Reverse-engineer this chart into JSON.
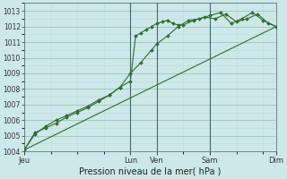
{
  "background_color": "#cce8e8",
  "plot_bg_color": "#cce8e8",
  "grid_color_major": "#99bbbb",
  "grid_color_minor": "#bbdddd",
  "line_color": "#2d6e2d",
  "title": "Pression niveau de la mer( hPa )",
  "ylim": [
    1004,
    1013.5
  ],
  "yticks": [
    1004,
    1005,
    1006,
    1007,
    1008,
    1009,
    1010,
    1011,
    1012,
    1013
  ],
  "ylabel_fontsize": 5.5,
  "day_labels": [
    "Jeu",
    "Lun",
    "Ven",
    "Sam",
    "Dim"
  ],
  "day_positions": [
    0.0,
    4.0,
    5.0,
    7.0,
    9.5
  ],
  "xlim": [
    0,
    9.5
  ],
  "series1_x": [
    0.0,
    0.4,
    0.8,
    1.2,
    1.6,
    2.0,
    2.4,
    2.8,
    3.2,
    3.6,
    4.0,
    4.2,
    4.4,
    4.6,
    4.8,
    5.0,
    5.2,
    5.4,
    5.6,
    5.8,
    6.0,
    6.4,
    6.8,
    7.2,
    7.6,
    8.0,
    8.4,
    8.8,
    9.2,
    9.5
  ],
  "series1_y": [
    1004.1,
    1005.2,
    1005.5,
    1005.8,
    1006.2,
    1006.5,
    1006.8,
    1007.2,
    1007.6,
    1008.1,
    1008.5,
    1011.4,
    1011.6,
    1011.8,
    1012.0,
    1012.2,
    1012.3,
    1012.4,
    1012.2,
    1012.1,
    1012.1,
    1012.4,
    1012.6,
    1012.5,
    1012.8,
    1012.3,
    1012.5,
    1012.8,
    1012.2,
    1012.0
  ],
  "series2_x": [
    0.0,
    0.4,
    0.8,
    1.2,
    1.6,
    2.0,
    2.4,
    2.8,
    3.2,
    3.6,
    4.0,
    4.4,
    4.8,
    5.0,
    5.4,
    5.8,
    6.2,
    6.6,
    7.0,
    7.4,
    7.8,
    8.2,
    8.6,
    9.0,
    9.5
  ],
  "series2_y": [
    1004.1,
    1005.1,
    1005.6,
    1006.0,
    1006.3,
    1006.6,
    1006.9,
    1007.3,
    1007.6,
    1008.1,
    1009.0,
    1009.7,
    1010.5,
    1010.9,
    1011.4,
    1012.0,
    1012.4,
    1012.5,
    1012.7,
    1012.9,
    1012.2,
    1012.5,
    1012.9,
    1012.4,
    1012.0
  ],
  "series3_x": [
    0.0,
    9.5
  ],
  "series3_y": [
    1004.1,
    1012.0
  ]
}
